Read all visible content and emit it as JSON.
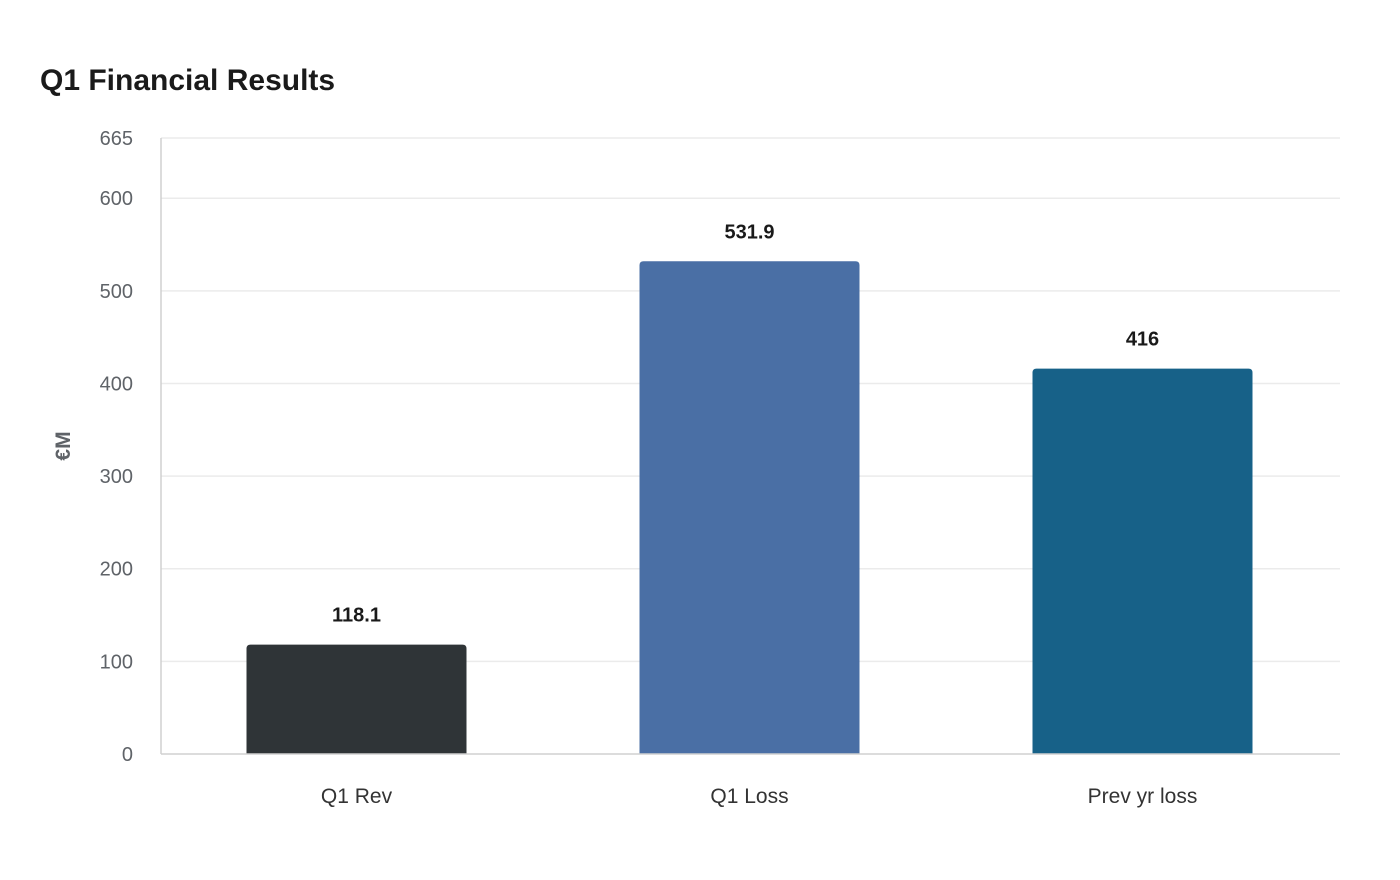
{
  "chart_data": {
    "type": "bar",
    "title": "Q1 Financial Results",
    "xlabel": "",
    "ylabel": "€M",
    "categories": [
      "Q1 Rev",
      "Q1 Loss",
      "Prev yr loss"
    ],
    "values": [
      118.1,
      531.9,
      416
    ],
    "value_labels": [
      "118.1",
      "531.9",
      "416"
    ],
    "colors": [
      "#2f3437",
      "#4a6fa5",
      "#176188"
    ],
    "ylim": [
      0,
      665
    ],
    "yticks": [
      0,
      100,
      200,
      300,
      400,
      500,
      600,
      665
    ],
    "grid": true,
    "legend": "none"
  }
}
